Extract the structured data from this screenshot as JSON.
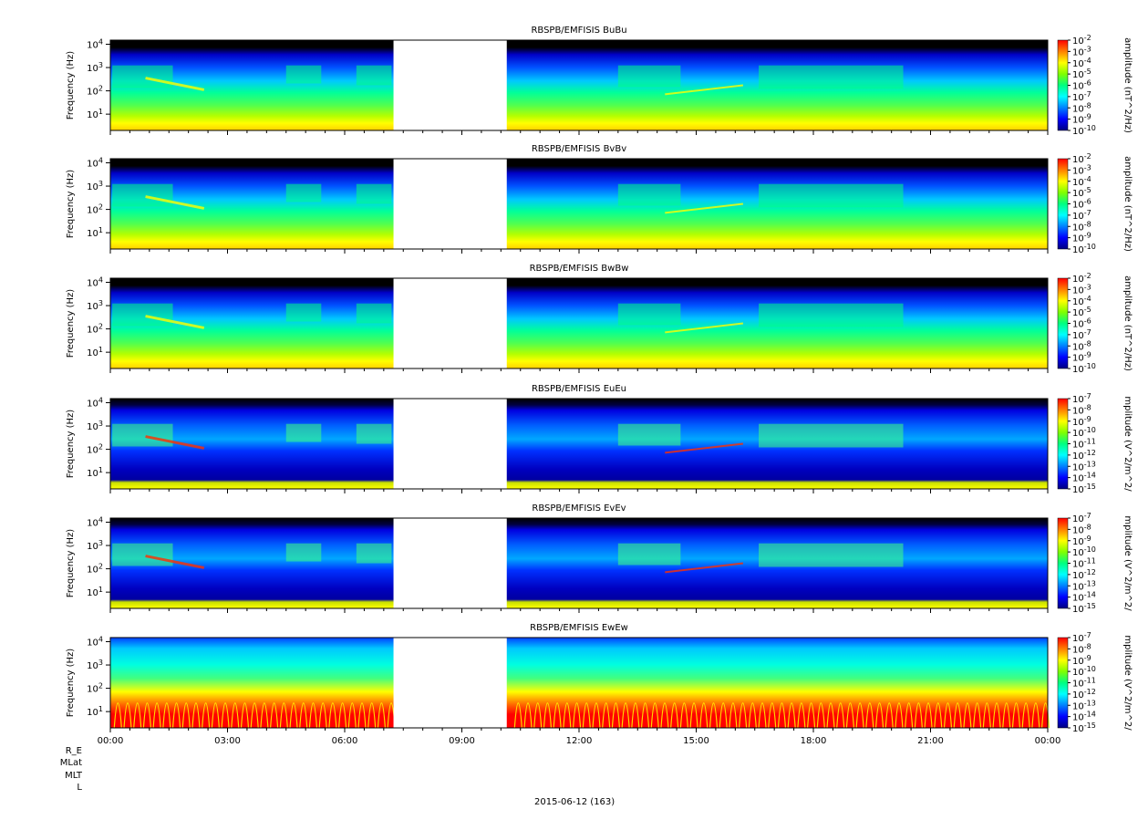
{
  "chart_data": {
    "type": "heatmap",
    "date_label": "2015-06-12 (163)",
    "x_tick_labels": [
      "00:00",
      "03:00",
      "06:00",
      "09:00",
      "12:00",
      "15:00",
      "18:00",
      "21:00",
      "00:00"
    ],
    "x_range_hours": [
      0,
      24
    ],
    "data_gap_hours": [
      7.25,
      10.15
    ],
    "y_scale": "log",
    "y_range_hz": [
      2,
      15000
    ],
    "y_tick_labels": [
      "10^1",
      "10^2",
      "10^3",
      "10^4"
    ],
    "ephemeris_labels": [
      "R_E",
      "MLat",
      "MLT",
      "L"
    ],
    "colormap": [
      "#000080",
      "#0000ff",
      "#0080ff",
      "#00ffff",
      "#00ff80",
      "#80ff00",
      "#ffff00",
      "#ff8000",
      "#ff0000"
    ],
    "panels": [
      {
        "title": "RBSPB/EMFISIS  BuBu",
        "ylabel": "Frequency (Hz)",
        "cbar_label": "amplitude (nT^2/Hz)",
        "cbar_ticks": [
          "10^-2",
          "10^-3",
          "10^-4",
          "10^-5",
          "10^-6",
          "10^-7",
          "10^-8",
          "10^-9",
          "10^-10"
        ],
        "kind": "B"
      },
      {
        "title": "RBSPB/EMFISIS  BvBv",
        "ylabel": "Frequency (Hz)",
        "cbar_label": "amplitude (nT^2/Hz)",
        "cbar_ticks": [
          "10^-2",
          "10^-3",
          "10^-4",
          "10^-5",
          "10^-6",
          "10^-7",
          "10^-8",
          "10^-9",
          "10^-10"
        ],
        "kind": "B"
      },
      {
        "title": "RBSPB/EMFISIS  BwBw",
        "ylabel": "Frequency (Hz)",
        "cbar_label": "amplitude (nT^2/Hz)",
        "cbar_ticks": [
          "10^-2",
          "10^-3",
          "10^-4",
          "10^-5",
          "10^-6",
          "10^-7",
          "10^-8",
          "10^-9",
          "10^-10"
        ],
        "kind": "B"
      },
      {
        "title": "RBSPB/EMFISIS  EuEu",
        "ylabel": "Frequency (Hz)",
        "cbar_label": "mplitude (V^2/m^2/",
        "cbar_ticks": [
          "10^-7",
          "10^-8",
          "10^-9",
          "10^-10",
          "10^-11",
          "10^-12",
          "10^-13",
          "10^-14",
          "10^-15"
        ],
        "kind": "E"
      },
      {
        "title": "RBSPB/EMFISIS  EvEv",
        "ylabel": "Frequency (Hz)",
        "cbar_label": "mplitude (V^2/m^2/",
        "cbar_ticks": [
          "10^-7",
          "10^-8",
          "10^-9",
          "10^-10",
          "10^-11",
          "10^-12",
          "10^-13",
          "10^-14",
          "10^-15"
        ],
        "kind": "E"
      },
      {
        "title": "RBSPB/EMFISIS  EwEw",
        "ylabel": "Frequency (Hz)",
        "cbar_label": "mplitude (V^2/m^2/",
        "cbar_ticks": [
          "10^-7",
          "10^-8",
          "10^-9",
          "10^-10",
          "10^-11",
          "10^-12",
          "10^-13",
          "10^-14",
          "10^-15"
        ],
        "kind": "Ew"
      }
    ]
  }
}
